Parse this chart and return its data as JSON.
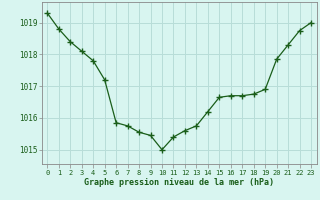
{
  "x": [
    0,
    1,
    2,
    3,
    4,
    5,
    6,
    7,
    8,
    9,
    10,
    11,
    12,
    13,
    14,
    15,
    16,
    17,
    18,
    19,
    20,
    21,
    22,
    23
  ],
  "y": [
    1019.3,
    1018.8,
    1018.4,
    1018.1,
    1017.8,
    1017.2,
    1015.85,
    1015.75,
    1015.55,
    1015.45,
    1015.0,
    1015.4,
    1015.6,
    1015.75,
    1016.2,
    1016.65,
    1016.7,
    1016.7,
    1016.75,
    1016.9,
    1017.85,
    1018.3,
    1018.75,
    1019.0
  ],
  "line_color": "#1a5e1a",
  "marker": "+",
  "marker_size": 5,
  "bg_color": "#d8f5f0",
  "grid_color": "#b8ddd8",
  "title": "Graphe pression niveau de la mer (hPa)",
  "ytick_labels": [
    "1015",
    "1016",
    "1017",
    "1018",
    "1019"
  ],
  "ytick_values": [
    1015,
    1016,
    1017,
    1018,
    1019
  ],
  "ylim": [
    1014.55,
    1019.65
  ],
  "xlim": [
    -0.5,
    23.5
  ],
  "xtick_labels": [
    "0",
    "1",
    "2",
    "3",
    "4",
    "5",
    "6",
    "7",
    "8",
    "9",
    "10",
    "11",
    "12",
    "13",
    "14",
    "15",
    "16",
    "17",
    "18",
    "19",
    "20",
    "21",
    "22",
    "23"
  ],
  "spine_color": "#888888",
  "title_color": "#1a5e1a",
  "text_color": "#1a5e1a"
}
